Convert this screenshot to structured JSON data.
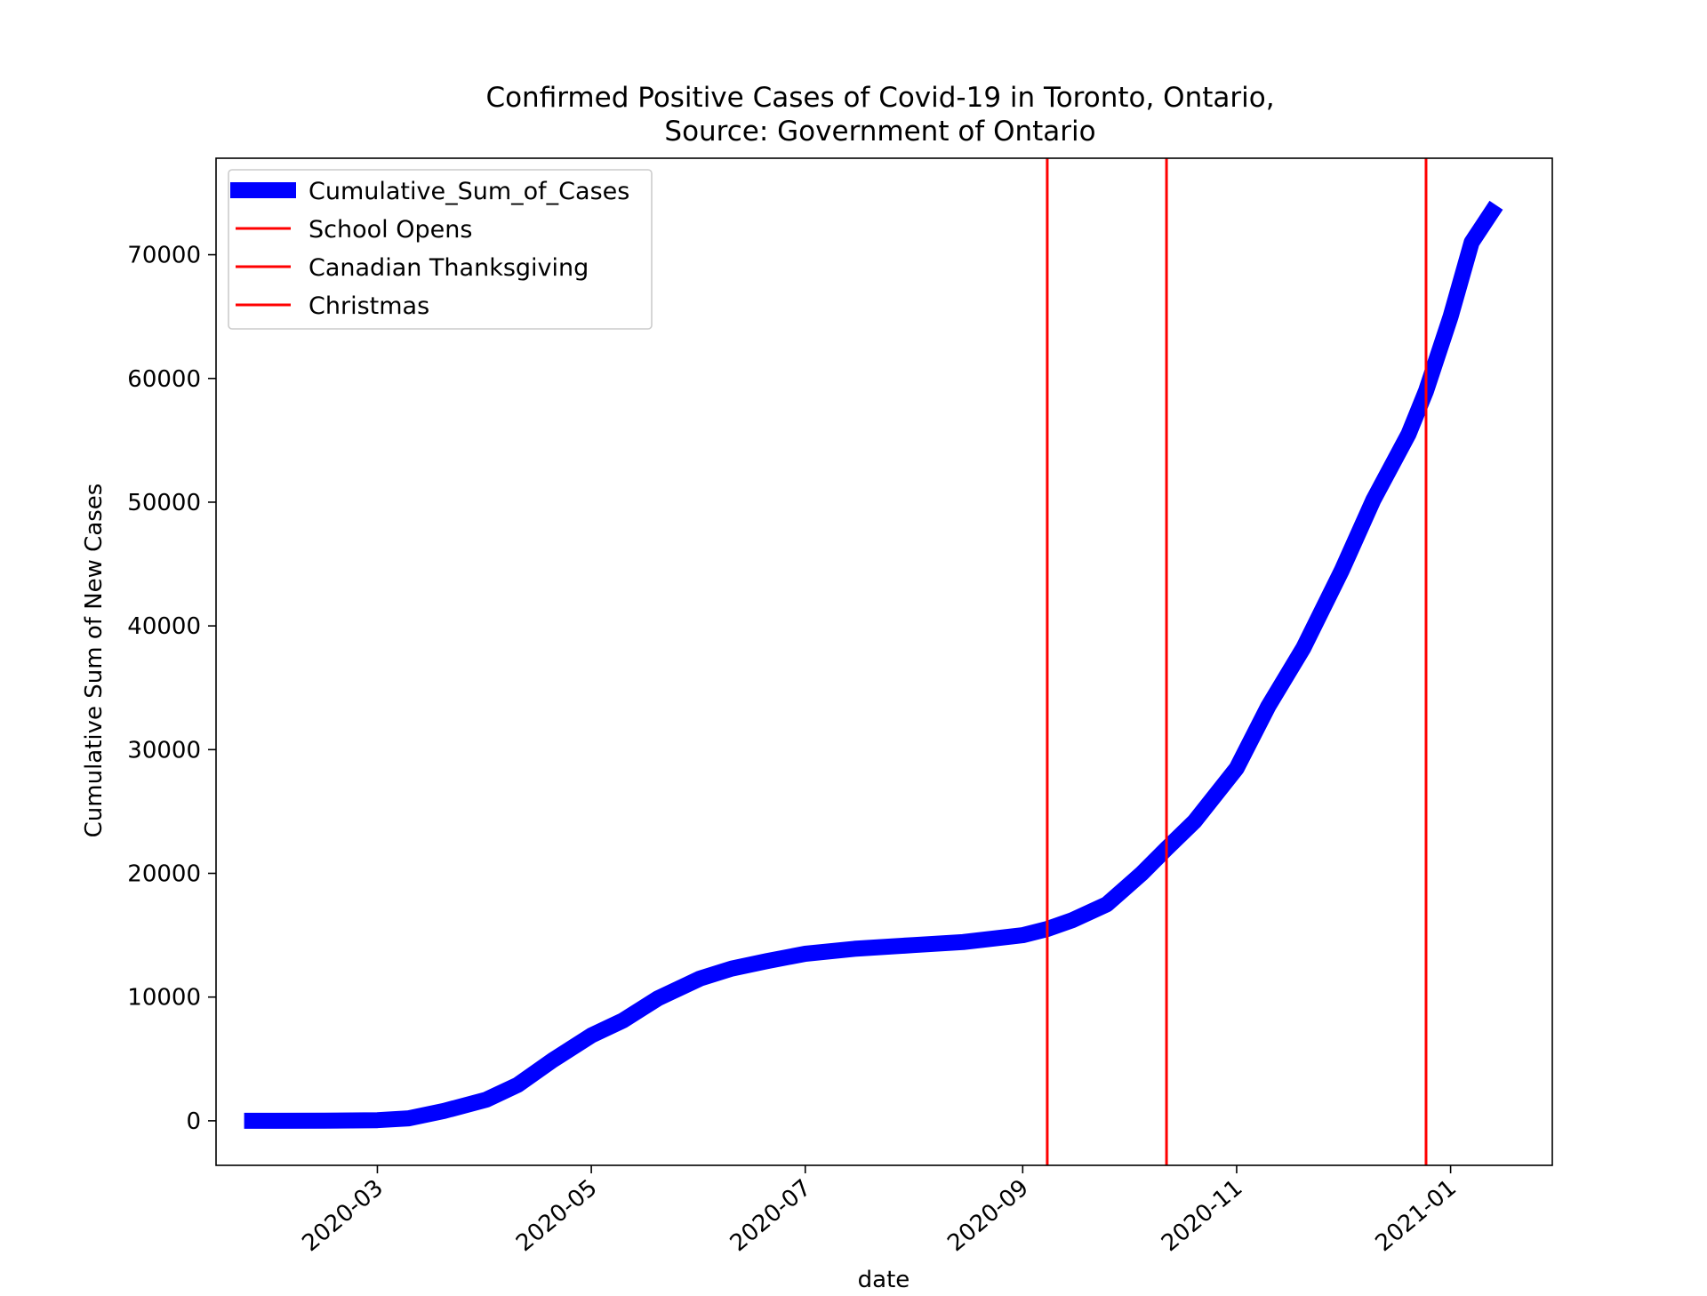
{
  "chart_data": {
    "type": "line",
    "title": "Confirmed Positive Cases of Covid-19 in Toronto, Ontario,",
    "subtitle": "Source: Government of Ontario",
    "xlabel": "date",
    "ylabel": "Cumulative Sum of New Cases",
    "x_ticks": [
      "2020-03",
      "2020-05",
      "2020-07",
      "2020-09",
      "2020-11",
      "2021-01"
    ],
    "y_ticks": [
      "0",
      "10000",
      "20000",
      "30000",
      "40000",
      "50000",
      "60000",
      "70000"
    ],
    "xlim": [
      "2020-01-15",
      "2021-01-30"
    ],
    "ylim": [
      -3600,
      77800
    ],
    "grid": false,
    "legend_position": "top-left",
    "series": [
      {
        "name": "Cumulative_Sum_of_Cases",
        "color": "#0000ff",
        "points": [
          [
            "2020-01-23",
            0
          ],
          [
            "2020-02-01",
            0
          ],
          [
            "2020-02-15",
            5
          ],
          [
            "2020-03-01",
            50
          ],
          [
            "2020-03-10",
            200
          ],
          [
            "2020-03-20",
            800
          ],
          [
            "2020-04-01",
            1700
          ],
          [
            "2020-04-10",
            2900
          ],
          [
            "2020-04-20",
            4900
          ],
          [
            "2020-05-01",
            6900
          ],
          [
            "2020-05-10",
            8100
          ],
          [
            "2020-05-20",
            9900
          ],
          [
            "2020-06-01",
            11500
          ],
          [
            "2020-06-10",
            12300
          ],
          [
            "2020-06-20",
            12900
          ],
          [
            "2020-07-01",
            13500
          ],
          [
            "2020-07-15",
            13900
          ],
          [
            "2020-08-01",
            14200
          ],
          [
            "2020-08-15",
            14450
          ],
          [
            "2020-09-01",
            15000
          ],
          [
            "2020-09-08",
            15500
          ],
          [
            "2020-09-15",
            16200
          ],
          [
            "2020-09-25",
            17500
          ],
          [
            "2020-10-05",
            20000
          ],
          [
            "2020-10-12",
            22000
          ],
          [
            "2020-10-20",
            24200
          ],
          [
            "2020-11-01",
            28500
          ],
          [
            "2020-11-10",
            33500
          ],
          [
            "2020-11-20",
            38200
          ],
          [
            "2020-12-01",
            44500
          ],
          [
            "2020-12-10",
            50200
          ],
          [
            "2020-12-20",
            55500
          ],
          [
            "2020-12-25",
            59000
          ],
          [
            "2021-01-01",
            65000
          ],
          [
            "2021-01-07",
            71000
          ],
          [
            "2021-01-14",
            74000
          ]
        ]
      }
    ],
    "events": [
      {
        "name": "School Opens",
        "date": "2020-09-08",
        "color": "#ff0000"
      },
      {
        "name": "Canadian Thanksgiving",
        "date": "2020-10-12",
        "color": "#ff0000"
      },
      {
        "name": "Christmas",
        "date": "2020-12-25",
        "color": "#ff0000"
      }
    ]
  }
}
